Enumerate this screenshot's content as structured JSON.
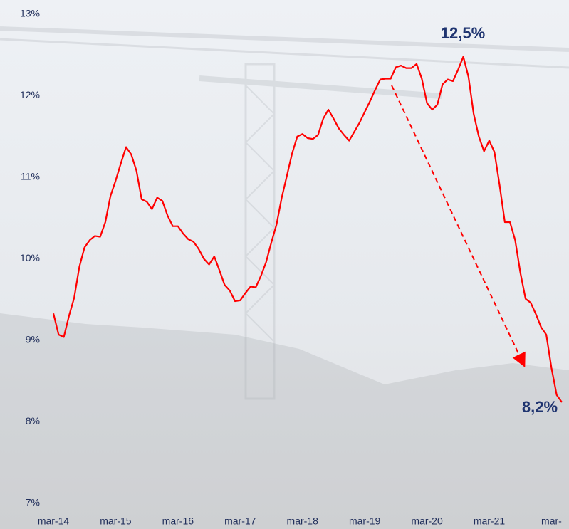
{
  "chart_data": {
    "type": "line",
    "categories": [
      "mar-14",
      null,
      null,
      null,
      null,
      null,
      null,
      null,
      null,
      null,
      null,
      null,
      "mar-15",
      null,
      null,
      null,
      null,
      null,
      null,
      null,
      null,
      null,
      null,
      null,
      "mar-16",
      null,
      null,
      null,
      null,
      null,
      null,
      null,
      null,
      null,
      null,
      null,
      "mar-17",
      null,
      null,
      null,
      null,
      null,
      null,
      null,
      null,
      null,
      null,
      null,
      "mar-18",
      null,
      null,
      null,
      null,
      null,
      null,
      null,
      null,
      null,
      null,
      null,
      "mar-19",
      null,
      null,
      null,
      null,
      null,
      null,
      null,
      null,
      null,
      null,
      null,
      "mar-20",
      null,
      null,
      null,
      null,
      null,
      null,
      null,
      null,
      null,
      null,
      null,
      "mar-21",
      null,
      null,
      null,
      null,
      null,
      null,
      null,
      null,
      null,
      null,
      null,
      "mar-",
      null,
      null
    ],
    "series": [
      {
        "color": "#ff0000",
        "values": [
          9.33,
          9.07,
          9.04,
          9.3,
          9.52,
          9.9,
          10.14,
          10.23,
          10.28,
          10.27,
          10.45,
          10.77,
          10.96,
          11.17,
          11.37,
          11.28,
          11.08,
          10.73,
          10.7,
          10.61,
          10.75,
          10.71,
          10.53,
          10.4,
          10.4,
          10.31,
          10.24,
          10.21,
          10.12,
          10.0,
          9.93,
          10.03,
          9.86,
          9.68,
          9.61,
          9.48,
          9.49,
          9.58,
          9.66,
          9.65,
          9.79,
          9.96,
          10.2,
          10.42,
          10.75,
          11.02,
          11.29,
          11.5,
          11.53,
          11.48,
          11.47,
          11.52,
          11.72,
          11.83,
          11.72,
          11.6,
          11.52,
          11.45,
          11.56,
          11.67,
          11.8,
          11.93,
          12.07,
          12.2,
          12.21,
          12.21,
          12.35,
          12.37,
          12.34,
          12.34,
          12.39,
          12.21,
          11.91,
          11.83,
          11.89,
          12.14,
          12.2,
          12.18,
          12.32,
          12.48,
          12.23,
          11.78,
          11.5,
          11.32,
          11.45,
          11.31,
          10.9,
          10.45,
          10.45,
          10.23,
          9.83,
          9.51,
          9.46,
          9.32,
          9.16,
          9.07,
          8.66,
          8.33,
          8.24
        ]
      }
    ],
    "ylim": [
      7,
      13
    ],
    "yticks": [
      {
        "value": 7,
        "label": "7%"
      },
      {
        "value": 8,
        "label": "8%"
      },
      {
        "value": 9,
        "label": "9%"
      },
      {
        "value": 10,
        "label": "10%"
      },
      {
        "value": 11,
        "label": "11%"
      },
      {
        "value": 12,
        "label": "12%"
      },
      {
        "value": 13,
        "label": "13%"
      }
    ],
    "annotations": [
      "12,5%",
      "8,2%"
    ]
  }
}
